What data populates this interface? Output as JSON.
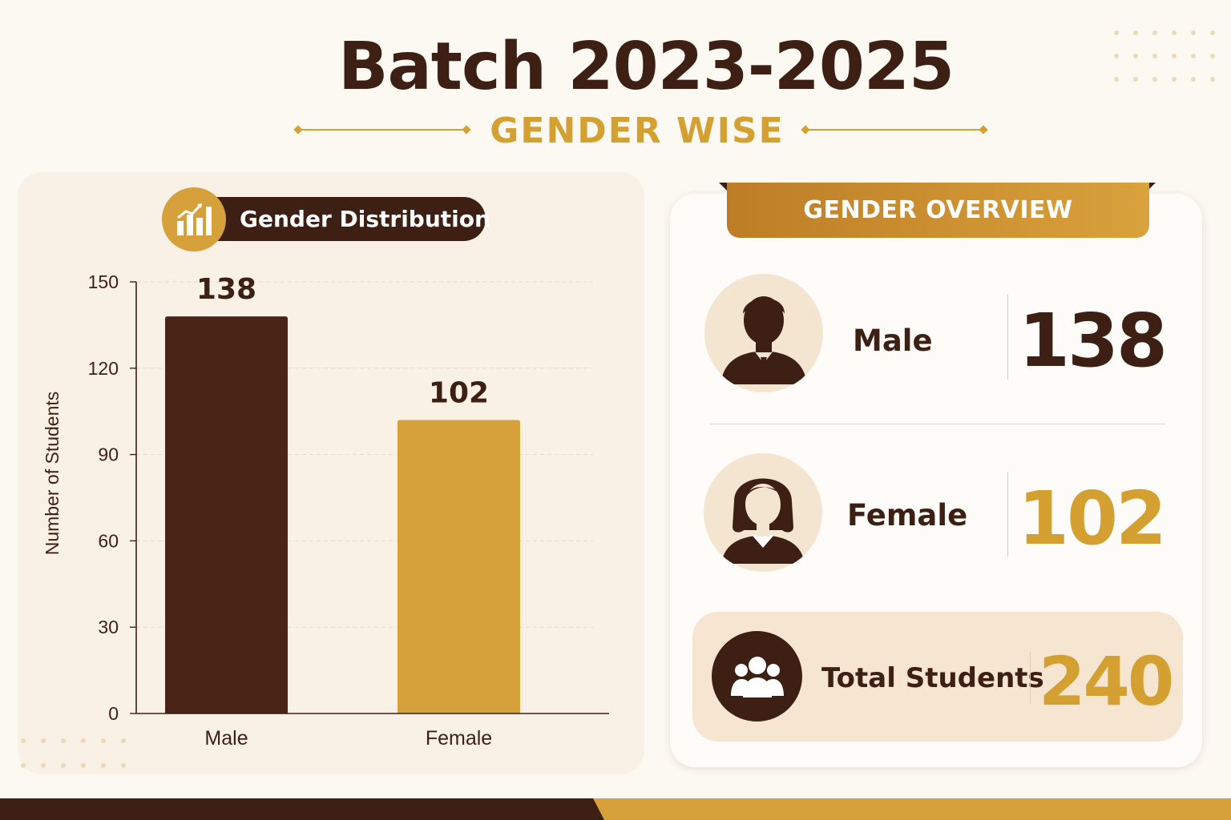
{
  "header": {
    "title": "Batch 2023-2025",
    "subtitle": "GENDER WISE"
  },
  "chart_panel": {
    "pill_label": "Gender Distribution",
    "pill_icon": "bar-chart-icon"
  },
  "chart_data": {
    "type": "bar",
    "title": "Gender Distribution",
    "categories": [
      "Male",
      "Female"
    ],
    "values": [
      138,
      102
    ],
    "data_labels": [
      "138",
      "102"
    ],
    "colors": [
      "#4a2416",
      "#d6a03a"
    ],
    "ylabel": "Number of Students",
    "xlabel": "",
    "ylim": [
      0,
      150
    ],
    "yticks": [
      0,
      30,
      60,
      90,
      120,
      150
    ],
    "grid": true,
    "legend": "none"
  },
  "overview": {
    "ribbon_title": "GENDER OVERVIEW",
    "male": {
      "label": "Male",
      "value": "138",
      "icon": "male-person-icon"
    },
    "female": {
      "label": "Female",
      "value": "102",
      "icon": "female-person-icon"
    },
    "total": {
      "label": "Total Students",
      "value": "240",
      "icon": "group-icon"
    }
  },
  "colors": {
    "background": "#fcf8f2",
    "brown": "#3e1f14",
    "gold": "#d4a032"
  }
}
